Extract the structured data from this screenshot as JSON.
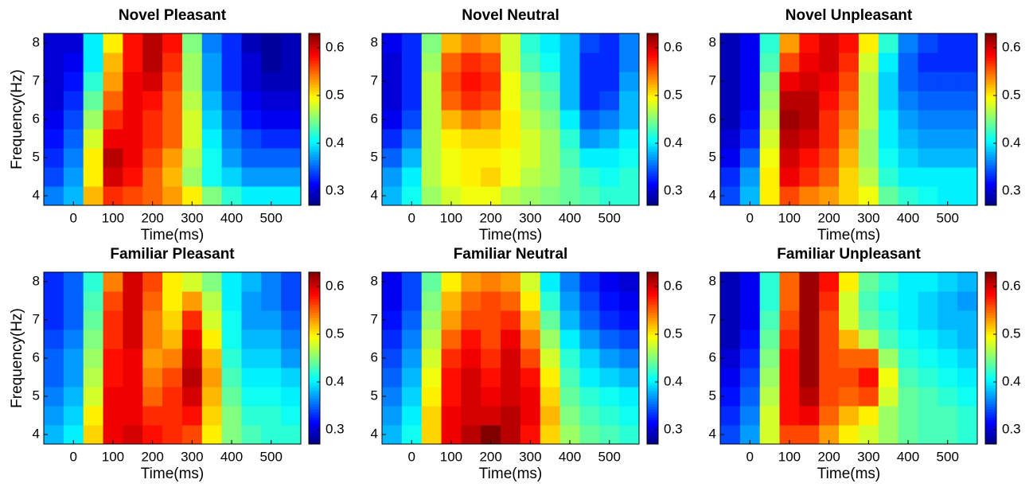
{
  "chart_data": [
    {
      "type": "heatmap",
      "title": "Novel Pleasant",
      "xlabel": "Time(ms)",
      "ylabel": "Frequency(Hz)",
      "colormap": "jet",
      "x": [
        -50,
        0,
        50,
        100,
        150,
        200,
        250,
        300,
        350,
        400,
        450,
        500,
        550
      ],
      "y": [
        4,
        4.5,
        5,
        5.5,
        6,
        6.5,
        7,
        7.5,
        8
      ],
      "xlim": [
        -75,
        575
      ],
      "ylim": [
        3.75,
        8.25
      ],
      "xticks": [
        0,
        100,
        200,
        300,
        400,
        500
      ],
      "yticks": [
        4,
        5,
        6,
        7,
        8
      ],
      "clim": [
        0.27,
        0.63
      ],
      "cticks": [
        0.3,
        0.4,
        0.5,
        0.6
      ],
      "values": [
        [
          0.36,
          0.38,
          0.52,
          0.57,
          0.56,
          0.55,
          0.53,
          0.5,
          0.45,
          0.42,
          0.4,
          0.4,
          0.4
        ],
        [
          0.34,
          0.37,
          0.5,
          0.6,
          0.58,
          0.55,
          0.52,
          0.46,
          0.41,
          0.39,
          0.37,
          0.37,
          0.37
        ],
        [
          0.33,
          0.36,
          0.5,
          0.61,
          0.59,
          0.56,
          0.53,
          0.47,
          0.41,
          0.37,
          0.35,
          0.35,
          0.35
        ],
        [
          0.32,
          0.35,
          0.48,
          0.59,
          0.59,
          0.57,
          0.55,
          0.48,
          0.4,
          0.36,
          0.34,
          0.33,
          0.33
        ],
        [
          0.31,
          0.34,
          0.46,
          0.57,
          0.59,
          0.57,
          0.55,
          0.48,
          0.39,
          0.35,
          0.32,
          0.31,
          0.31
        ],
        [
          0.3,
          0.33,
          0.44,
          0.55,
          0.59,
          0.58,
          0.55,
          0.47,
          0.38,
          0.34,
          0.31,
          0.3,
          0.3
        ],
        [
          0.3,
          0.32,
          0.42,
          0.53,
          0.59,
          0.6,
          0.56,
          0.46,
          0.37,
          0.33,
          0.3,
          0.29,
          0.29
        ],
        [
          0.3,
          0.31,
          0.4,
          0.52,
          0.58,
          0.61,
          0.57,
          0.46,
          0.37,
          0.33,
          0.3,
          0.28,
          0.29
        ],
        [
          0.3,
          0.3,
          0.4,
          0.5,
          0.58,
          0.61,
          0.58,
          0.45,
          0.36,
          0.33,
          0.29,
          0.28,
          0.29
        ]
      ]
    },
    {
      "type": "heatmap",
      "title": "Novel Neutral",
      "xlabel": "Time(ms)",
      "colormap": "jet",
      "x": [
        -50,
        0,
        50,
        100,
        150,
        200,
        250,
        300,
        350,
        400,
        450,
        500,
        550
      ],
      "y": [
        4,
        4.5,
        5,
        5.5,
        6,
        6.5,
        7,
        7.5,
        8
      ],
      "xlim": [
        -75,
        575
      ],
      "ylim": [
        3.75,
        8.25
      ],
      "xticks": [
        0,
        100,
        200,
        300,
        400,
        500
      ],
      "yticks": [
        4,
        5,
        6,
        7,
        8
      ],
      "clim": [
        0.27,
        0.63
      ],
      "cticks": [
        0.3,
        0.4,
        0.5,
        0.6
      ],
      "values": [
        [
          0.38,
          0.41,
          0.46,
          0.48,
          0.49,
          0.49,
          0.47,
          0.46,
          0.45,
          0.44,
          0.43,
          0.42,
          0.42
        ],
        [
          0.37,
          0.4,
          0.47,
          0.49,
          0.5,
          0.51,
          0.49,
          0.47,
          0.46,
          0.44,
          0.42,
          0.41,
          0.42
        ],
        [
          0.35,
          0.38,
          0.47,
          0.49,
          0.5,
          0.5,
          0.49,
          0.48,
          0.46,
          0.43,
          0.4,
          0.4,
          0.41
        ],
        [
          0.33,
          0.36,
          0.47,
          0.5,
          0.51,
          0.51,
          0.5,
          0.48,
          0.46,
          0.42,
          0.37,
          0.38,
          0.4
        ],
        [
          0.31,
          0.34,
          0.47,
          0.52,
          0.54,
          0.53,
          0.5,
          0.47,
          0.45,
          0.4,
          0.35,
          0.36,
          0.38
        ],
        [
          0.3,
          0.33,
          0.47,
          0.55,
          0.57,
          0.56,
          0.49,
          0.46,
          0.44,
          0.38,
          0.33,
          0.34,
          0.38
        ],
        [
          0.3,
          0.33,
          0.47,
          0.56,
          0.58,
          0.57,
          0.49,
          0.45,
          0.43,
          0.38,
          0.33,
          0.33,
          0.37
        ],
        [
          0.3,
          0.33,
          0.46,
          0.55,
          0.57,
          0.56,
          0.48,
          0.43,
          0.41,
          0.38,
          0.33,
          0.33,
          0.36
        ],
        [
          0.31,
          0.33,
          0.45,
          0.52,
          0.54,
          0.53,
          0.48,
          0.42,
          0.4,
          0.38,
          0.34,
          0.33,
          0.36
        ]
      ]
    },
    {
      "type": "heatmap",
      "title": "Novel Unpleasant",
      "xlabel": "Time(ms)",
      "colormap": "jet",
      "x": [
        -50,
        0,
        50,
        100,
        150,
        200,
        250,
        300,
        350,
        400,
        450,
        500,
        550
      ],
      "y": [
        4,
        4.5,
        5,
        5.5,
        6,
        6.5,
        7,
        7.5,
        8
      ],
      "xlim": [
        -75,
        575
      ],
      "ylim": [
        3.75,
        8.25
      ],
      "xticks": [
        0,
        100,
        200,
        300,
        400,
        500
      ],
      "yticks": [
        4,
        5,
        6,
        7,
        8
      ],
      "clim": [
        0.27,
        0.63
      ],
      "cticks": [
        0.3,
        0.4,
        0.5,
        0.6
      ],
      "values": [
        [
          0.34,
          0.38,
          0.5,
          0.56,
          0.54,
          0.53,
          0.51,
          0.49,
          0.44,
          0.42,
          0.41,
          0.4,
          0.4
        ],
        [
          0.33,
          0.37,
          0.5,
          0.59,
          0.57,
          0.55,
          0.51,
          0.47,
          0.42,
          0.4,
          0.4,
          0.4,
          0.4
        ],
        [
          0.31,
          0.35,
          0.49,
          0.6,
          0.58,
          0.56,
          0.52,
          0.46,
          0.41,
          0.39,
          0.38,
          0.38,
          0.38
        ],
        [
          0.3,
          0.33,
          0.48,
          0.61,
          0.6,
          0.57,
          0.53,
          0.46,
          0.4,
          0.38,
          0.37,
          0.37,
          0.37
        ],
        [
          0.29,
          0.32,
          0.47,
          0.62,
          0.61,
          0.57,
          0.54,
          0.47,
          0.4,
          0.37,
          0.36,
          0.36,
          0.36
        ],
        [
          0.29,
          0.31,
          0.46,
          0.61,
          0.61,
          0.58,
          0.55,
          0.47,
          0.39,
          0.36,
          0.35,
          0.35,
          0.35
        ],
        [
          0.29,
          0.31,
          0.45,
          0.59,
          0.6,
          0.59,
          0.56,
          0.47,
          0.39,
          0.35,
          0.34,
          0.34,
          0.34
        ],
        [
          0.29,
          0.31,
          0.43,
          0.56,
          0.59,
          0.6,
          0.57,
          0.48,
          0.4,
          0.35,
          0.33,
          0.33,
          0.33
        ],
        [
          0.29,
          0.31,
          0.42,
          0.53,
          0.58,
          0.6,
          0.58,
          0.5,
          0.42,
          0.36,
          0.34,
          0.33,
          0.33
        ]
      ]
    },
    {
      "type": "heatmap",
      "title": "Familiar Pleasant",
      "xlabel": "Time(ms)",
      "ylabel": "Frequency(Hz)",
      "colormap": "jet",
      "x": [
        -50,
        0,
        50,
        100,
        150,
        200,
        250,
        300,
        350,
        400,
        450,
        500,
        550
      ],
      "y": [
        4,
        4.5,
        5,
        5.5,
        6,
        6.5,
        7,
        7.5,
        8
      ],
      "xlim": [
        -75,
        575
      ],
      "ylim": [
        3.75,
        8.25
      ],
      "xticks": [
        0,
        100,
        200,
        300,
        400,
        500
      ],
      "yticks": [
        4,
        5,
        6,
        7,
        8
      ],
      "clim": [
        0.27,
        0.63
      ],
      "cticks": [
        0.3,
        0.4,
        0.5,
        0.6
      ],
      "values": [
        [
          0.38,
          0.4,
          0.51,
          0.59,
          0.6,
          0.58,
          0.57,
          0.56,
          0.5,
          0.45,
          0.43,
          0.42,
          0.42
        ],
        [
          0.37,
          0.39,
          0.5,
          0.59,
          0.59,
          0.57,
          0.57,
          0.58,
          0.51,
          0.45,
          0.42,
          0.42,
          0.41
        ],
        [
          0.36,
          0.38,
          0.48,
          0.59,
          0.59,
          0.55,
          0.57,
          0.6,
          0.52,
          0.44,
          0.41,
          0.41,
          0.4
        ],
        [
          0.35,
          0.37,
          0.47,
          0.58,
          0.59,
          0.54,
          0.56,
          0.61,
          0.53,
          0.43,
          0.4,
          0.4,
          0.39
        ],
        [
          0.35,
          0.37,
          0.46,
          0.58,
          0.59,
          0.53,
          0.54,
          0.6,
          0.52,
          0.42,
          0.39,
          0.39,
          0.37
        ],
        [
          0.34,
          0.36,
          0.45,
          0.57,
          0.6,
          0.54,
          0.52,
          0.59,
          0.5,
          0.41,
          0.38,
          0.38,
          0.36
        ],
        [
          0.33,
          0.35,
          0.44,
          0.57,
          0.6,
          0.54,
          0.51,
          0.57,
          0.48,
          0.41,
          0.37,
          0.37,
          0.35
        ],
        [
          0.33,
          0.35,
          0.43,
          0.56,
          0.6,
          0.55,
          0.5,
          0.53,
          0.47,
          0.4,
          0.37,
          0.36,
          0.34
        ],
        [
          0.33,
          0.35,
          0.42,
          0.54,
          0.6,
          0.56,
          0.5,
          0.48,
          0.45,
          0.4,
          0.38,
          0.36,
          0.34
        ]
      ]
    },
    {
      "type": "heatmap",
      "title": "Familiar Neutral",
      "xlabel": "Time(ms)",
      "colormap": "jet",
      "x": [
        -50,
        0,
        50,
        100,
        150,
        200,
        250,
        300,
        350,
        400,
        450,
        500,
        550
      ],
      "y": [
        4,
        4.5,
        5,
        5.5,
        6,
        6.5,
        7,
        7.5,
        8
      ],
      "xlim": [
        -75,
        575
      ],
      "ylim": [
        3.75,
        8.25
      ],
      "xticks": [
        0,
        100,
        200,
        300,
        400,
        500
      ],
      "yticks": [
        4,
        5,
        6,
        7,
        8
      ],
      "clim": [
        0.27,
        0.63
      ],
      "cticks": [
        0.3,
        0.4,
        0.5,
        0.6
      ],
      "values": [
        [
          0.38,
          0.41,
          0.51,
          0.59,
          0.61,
          0.63,
          0.61,
          0.58,
          0.51,
          0.46,
          0.44,
          0.43,
          0.42
        ],
        [
          0.37,
          0.4,
          0.51,
          0.59,
          0.6,
          0.6,
          0.61,
          0.59,
          0.52,
          0.45,
          0.43,
          0.42,
          0.41
        ],
        [
          0.36,
          0.39,
          0.5,
          0.58,
          0.6,
          0.59,
          0.6,
          0.59,
          0.51,
          0.44,
          0.42,
          0.41,
          0.4
        ],
        [
          0.35,
          0.38,
          0.49,
          0.58,
          0.6,
          0.58,
          0.6,
          0.58,
          0.5,
          0.43,
          0.4,
          0.39,
          0.38
        ],
        [
          0.34,
          0.37,
          0.48,
          0.57,
          0.59,
          0.57,
          0.6,
          0.56,
          0.48,
          0.42,
          0.39,
          0.37,
          0.36
        ],
        [
          0.33,
          0.36,
          0.47,
          0.55,
          0.58,
          0.56,
          0.59,
          0.54,
          0.46,
          0.4,
          0.37,
          0.35,
          0.34
        ],
        [
          0.32,
          0.35,
          0.46,
          0.53,
          0.56,
          0.56,
          0.57,
          0.52,
          0.44,
          0.38,
          0.35,
          0.33,
          0.32
        ],
        [
          0.31,
          0.34,
          0.45,
          0.52,
          0.55,
          0.56,
          0.55,
          0.5,
          0.42,
          0.37,
          0.34,
          0.32,
          0.31
        ],
        [
          0.31,
          0.34,
          0.44,
          0.5,
          0.53,
          0.54,
          0.53,
          0.48,
          0.4,
          0.36,
          0.33,
          0.31,
          0.3
        ]
      ]
    },
    {
      "type": "heatmap",
      "title": "Familiar Unpleasant",
      "xlabel": "Time(ms)",
      "colormap": "jet",
      "x": [
        -50,
        0,
        50,
        100,
        150,
        200,
        250,
        300,
        350,
        400,
        450,
        500,
        550
      ],
      "y": [
        4,
        4.5,
        5,
        5.5,
        6,
        6.5,
        7,
        7.5,
        8
      ],
      "xlim": [
        -75,
        575
      ],
      "ylim": [
        3.75,
        8.25
      ],
      "xticks": [
        0,
        100,
        200,
        300,
        400,
        500
      ],
      "yticks": [
        4,
        5,
        6,
        7,
        8
      ],
      "clim": [
        0.27,
        0.63
      ],
      "cticks": [
        0.3,
        0.4,
        0.5,
        0.6
      ],
      "values": [
        [
          0.34,
          0.37,
          0.48,
          0.56,
          0.56,
          0.53,
          0.5,
          0.48,
          0.46,
          0.44,
          0.43,
          0.43,
          0.42
        ],
        [
          0.33,
          0.36,
          0.48,
          0.58,
          0.59,
          0.55,
          0.52,
          0.5,
          0.46,
          0.44,
          0.43,
          0.43,
          0.42
        ],
        [
          0.32,
          0.35,
          0.47,
          0.58,
          0.61,
          0.56,
          0.55,
          0.56,
          0.48,
          0.44,
          0.43,
          0.42,
          0.41
        ],
        [
          0.31,
          0.34,
          0.46,
          0.58,
          0.62,
          0.56,
          0.56,
          0.58,
          0.49,
          0.43,
          0.42,
          0.41,
          0.4
        ],
        [
          0.3,
          0.33,
          0.45,
          0.58,
          0.62,
          0.56,
          0.55,
          0.55,
          0.46,
          0.42,
          0.41,
          0.4,
          0.39
        ],
        [
          0.29,
          0.32,
          0.44,
          0.57,
          0.62,
          0.56,
          0.52,
          0.47,
          0.43,
          0.41,
          0.4,
          0.39,
          0.38
        ],
        [
          0.29,
          0.31,
          0.43,
          0.56,
          0.62,
          0.56,
          0.48,
          0.44,
          0.42,
          0.4,
          0.39,
          0.38,
          0.38
        ],
        [
          0.29,
          0.31,
          0.42,
          0.55,
          0.62,
          0.57,
          0.48,
          0.43,
          0.41,
          0.4,
          0.39,
          0.38,
          0.37
        ],
        [
          0.29,
          0.31,
          0.42,
          0.55,
          0.62,
          0.58,
          0.5,
          0.44,
          0.42,
          0.4,
          0.4,
          0.39,
          0.38
        ]
      ]
    }
  ]
}
